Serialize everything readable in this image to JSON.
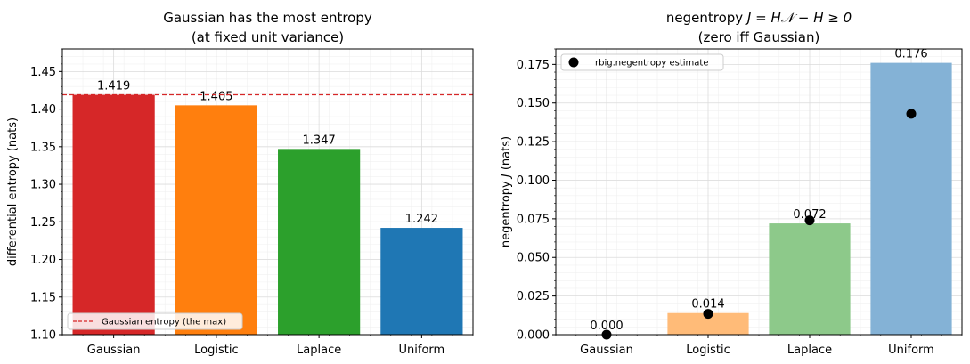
{
  "chart_data": [
    {
      "type": "bar",
      "title": "Gaussian has the most entropy",
      "subtitle": "(at fixed unit variance)",
      "xlabel": "",
      "ylabel": "differential entropy (nats)",
      "categories": [
        "Gaussian",
        "Logistic",
        "Laplace",
        "Uniform"
      ],
      "values": [
        1.419,
        1.405,
        1.347,
        1.242
      ],
      "data_labels": [
        "1.419",
        "1.405",
        "1.347",
        "1.242"
      ],
      "colors": [
        "#d62728",
        "#ff7f0e",
        "#2ca02c",
        "#1f77b4"
      ],
      "ylim": [
        1.1,
        1.48
      ],
      "yticks": [
        1.1,
        1.15,
        1.2,
        1.25,
        1.3,
        1.35,
        1.4,
        1.45
      ],
      "ytick_labels": [
        "1.10",
        "1.15",
        "1.20",
        "1.25",
        "1.30",
        "1.35",
        "1.40",
        "1.45"
      ],
      "reference_line": {
        "y": 1.419,
        "color": "#d62728",
        "style": "dashed"
      },
      "legend": {
        "placement": "lower-left",
        "entries": [
          "Gaussian entropy (the max)"
        ]
      },
      "grid": true
    },
    {
      "type": "bar",
      "title_prefix": "negentropy",
      "title_math": "J = H𝒩 − H ≥ 0",
      "subtitle": "(zero iff Gaussian)",
      "xlabel": "",
      "ylabel": "negentropy J (nats)",
      "categories": [
        "Gaussian",
        "Logistic",
        "Laplace",
        "Uniform"
      ],
      "values": [
        0.0,
        0.014,
        0.072,
        0.176
      ],
      "data_labels": [
        "0.000",
        "0.014",
        "0.072",
        "0.176"
      ],
      "colors": [
        "#aec7e8",
        "#ffbb78",
        "#8dc98a",
        "#84b2d6"
      ],
      "series": [
        {
          "name": "rbig.negentropy estimate",
          "values": [
            0.0,
            0.0135,
            0.074,
            0.143
          ],
          "color": "#000000"
        }
      ],
      "ylim": [
        0,
        0.185
      ],
      "yticks": [
        0,
        0.025,
        0.05,
        0.075,
        0.1,
        0.125,
        0.15,
        0.175
      ],
      "ytick_labels": [
        "0.000",
        "0.025",
        "0.050",
        "0.075",
        "0.100",
        "0.125",
        "0.150",
        "0.175"
      ],
      "legend": {
        "placement": "top-left",
        "entries": [
          "rbig.negentropy estimate"
        ]
      },
      "grid": true
    }
  ]
}
